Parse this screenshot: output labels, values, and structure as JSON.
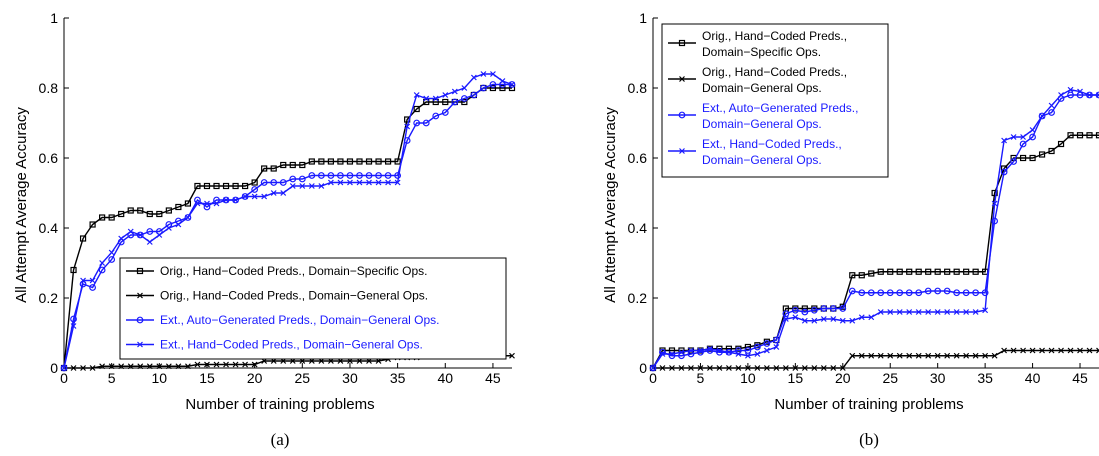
{
  "chart_data": [
    {
      "type": "line",
      "caption": "(a)",
      "xlabel": "Number of training problems",
      "ylabel": "All Attempt Average Accuracy",
      "xlim": [
        0,
        47
      ],
      "ylim": [
        0,
        1
      ],
      "xticks": [
        0,
        5,
        10,
        15,
        20,
        25,
        30,
        35,
        40,
        45
      ],
      "yticks": [
        0,
        0.2,
        0.4,
        0.6,
        0.8,
        1
      ],
      "ytick_labels": [
        "0",
        "0.2",
        "0.4",
        "0.6",
        "0.8",
        "1"
      ],
      "legend_position": "lower-right",
      "series": [
        {
          "name": "Orig., Hand−Coded Preds., Domain−Specific Ops.",
          "color": "#000000",
          "marker": "square",
          "x": [
            0,
            1,
            2,
            3,
            4,
            5,
            6,
            7,
            8,
            9,
            10,
            11,
            12,
            13,
            14,
            15,
            16,
            17,
            18,
            19,
            20,
            21,
            22,
            23,
            24,
            25,
            26,
            27,
            28,
            29,
            30,
            31,
            32,
            33,
            34,
            35,
            36,
            37,
            38,
            39,
            40,
            41,
            42,
            43,
            44,
            45,
            46,
            47
          ],
          "y": [
            0,
            0.28,
            0.37,
            0.41,
            0.43,
            0.43,
            0.44,
            0.45,
            0.45,
            0.44,
            0.44,
            0.45,
            0.46,
            0.47,
            0.52,
            0.52,
            0.52,
            0.52,
            0.52,
            0.52,
            0.53,
            0.57,
            0.57,
            0.58,
            0.58,
            0.58,
            0.59,
            0.59,
            0.59,
            0.59,
            0.59,
            0.59,
            0.59,
            0.59,
            0.59,
            0.59,
            0.71,
            0.74,
            0.76,
            0.76,
            0.76,
            0.76,
            0.76,
            0.78,
            0.8,
            0.8,
            0.8,
            0.8
          ]
        },
        {
          "name": "Orig., Hand−Coded Preds., Domain−General Ops.",
          "color": "#000000",
          "marker": "x",
          "x": [
            0,
            1,
            2,
            3,
            4,
            5,
            6,
            7,
            8,
            9,
            10,
            11,
            12,
            13,
            14,
            15,
            16,
            17,
            18,
            19,
            20,
            21,
            22,
            23,
            24,
            25,
            26,
            27,
            28,
            29,
            30,
            31,
            32,
            33,
            34,
            35,
            36,
            37,
            38,
            39,
            40,
            41,
            42,
            43,
            44,
            45,
            46,
            47
          ],
          "y": [
            0,
            0,
            0,
            0,
            0.005,
            0.005,
            0.005,
            0.005,
            0.005,
            0.005,
            0.005,
            0.005,
            0.005,
            0.005,
            0.01,
            0.01,
            0.01,
            0.01,
            0.01,
            0.01,
            0.01,
            0.02,
            0.02,
            0.02,
            0.02,
            0.02,
            0.02,
            0.02,
            0.02,
            0.02,
            0.02,
            0.02,
            0.02,
            0.02,
            0.025,
            0.03,
            0.03,
            0.03,
            0.035,
            0.035,
            0.035,
            0.035,
            0.035,
            0.035,
            0.035,
            0.035,
            0.035,
            0.035
          ]
        },
        {
          "name": "Ext., Auto−Generated Preds., Domain−General Ops.",
          "color": "#1a1aff",
          "marker": "circle",
          "x": [
            0,
            1,
            2,
            3,
            4,
            5,
            6,
            7,
            8,
            9,
            10,
            11,
            12,
            13,
            14,
            15,
            16,
            17,
            18,
            19,
            20,
            21,
            22,
            23,
            24,
            25,
            26,
            27,
            28,
            29,
            30,
            31,
            32,
            33,
            34,
            35,
            36,
            37,
            38,
            39,
            40,
            41,
            42,
            43,
            44,
            45,
            46,
            47
          ],
          "y": [
            0,
            0.14,
            0.24,
            0.23,
            0.28,
            0.31,
            0.36,
            0.38,
            0.38,
            0.39,
            0.39,
            0.41,
            0.42,
            0.43,
            0.48,
            0.46,
            0.48,
            0.48,
            0.48,
            0.49,
            0.51,
            0.53,
            0.53,
            0.53,
            0.54,
            0.54,
            0.55,
            0.55,
            0.55,
            0.55,
            0.55,
            0.55,
            0.55,
            0.55,
            0.55,
            0.55,
            0.65,
            0.7,
            0.7,
            0.72,
            0.73,
            0.76,
            0.77,
            0.78,
            0.8,
            0.81,
            0.81,
            0.81
          ]
        },
        {
          "name": "Ext., Hand−Coded Preds., Domain−General Ops.",
          "color": "#1a1aff",
          "marker": "x",
          "x": [
            0,
            1,
            2,
            3,
            4,
            5,
            6,
            7,
            8,
            9,
            10,
            11,
            12,
            13,
            14,
            15,
            16,
            17,
            18,
            19,
            20,
            21,
            22,
            23,
            24,
            25,
            26,
            27,
            28,
            29,
            30,
            31,
            32,
            33,
            34,
            35,
            36,
            37,
            38,
            39,
            40,
            41,
            42,
            43,
            44,
            45,
            46,
            47
          ],
          "y": [
            0,
            0.12,
            0.25,
            0.25,
            0.3,
            0.33,
            0.37,
            0.39,
            0.38,
            0.36,
            0.38,
            0.4,
            0.41,
            0.43,
            0.47,
            0.47,
            0.47,
            0.48,
            0.48,
            0.49,
            0.49,
            0.49,
            0.5,
            0.5,
            0.52,
            0.52,
            0.52,
            0.52,
            0.53,
            0.53,
            0.53,
            0.53,
            0.53,
            0.53,
            0.53,
            0.53,
            0.69,
            0.78,
            0.77,
            0.77,
            0.78,
            0.79,
            0.8,
            0.83,
            0.84,
            0.84,
            0.82,
            0.81
          ]
        }
      ]
    },
    {
      "type": "line",
      "caption": "(b)",
      "xlabel": "Number of training problems",
      "ylabel": "All Attempt Average Accuracy",
      "xlim": [
        0,
        47
      ],
      "ylim": [
        0,
        1
      ],
      "xticks": [
        0,
        5,
        10,
        15,
        20,
        25,
        30,
        35,
        40,
        45
      ],
      "yticks": [
        0,
        0.2,
        0.4,
        0.6,
        0.8,
        1
      ],
      "ytick_labels": [
        "0",
        "0.2",
        "0.4",
        "0.6",
        "0.8",
        "1"
      ],
      "legend_position": "top-left",
      "series": [
        {
          "name": "Orig., Hand−Coded Preds., Domain−Specific Ops.",
          "color": "#000000",
          "marker": "square",
          "x": [
            0,
            1,
            2,
            3,
            4,
            5,
            6,
            7,
            8,
            9,
            10,
            11,
            12,
            13,
            14,
            15,
            16,
            17,
            18,
            19,
            20,
            21,
            22,
            23,
            24,
            25,
            26,
            27,
            28,
            29,
            30,
            31,
            32,
            33,
            34,
            35,
            36,
            37,
            38,
            39,
            40,
            41,
            42,
            43,
            44,
            45,
            46,
            47
          ],
          "y": [
            0,
            0.05,
            0.05,
            0.05,
            0.05,
            0.05,
            0.055,
            0.055,
            0.055,
            0.055,
            0.06,
            0.065,
            0.075,
            0.08,
            0.17,
            0.17,
            0.17,
            0.17,
            0.17,
            0.17,
            0.175,
            0.265,
            0.265,
            0.27,
            0.275,
            0.275,
            0.275,
            0.275,
            0.275,
            0.275,
            0.275,
            0.275,
            0.275,
            0.275,
            0.275,
            0.275,
            0.5,
            0.57,
            0.6,
            0.6,
            0.6,
            0.61,
            0.62,
            0.64,
            0.665,
            0.665,
            0.665,
            0.665
          ]
        },
        {
          "name": "Orig., Hand−Coded Preds., Domain−General Ops.",
          "color": "#000000",
          "marker": "x",
          "x": [
            0,
            1,
            2,
            3,
            4,
            5,
            6,
            7,
            8,
            9,
            10,
            11,
            12,
            13,
            14,
            15,
            16,
            17,
            18,
            19,
            20,
            21,
            22,
            23,
            24,
            25,
            26,
            27,
            28,
            29,
            30,
            31,
            32,
            33,
            34,
            35,
            36,
            37,
            38,
            39,
            40,
            41,
            42,
            43,
            44,
            45,
            46,
            47
          ],
          "y": [
            0,
            0,
            0,
            0,
            0,
            0,
            0,
            0,
            0,
            0,
            0,
            0,
            0,
            0,
            0,
            0,
            0,
            0,
            0,
            0,
            0,
            0.035,
            0.035,
            0.035,
            0.035,
            0.035,
            0.035,
            0.035,
            0.035,
            0.035,
            0.035,
            0.035,
            0.035,
            0.035,
            0.035,
            0.035,
            0.035,
            0.05,
            0.05,
            0.05,
            0.05,
            0.05,
            0.05,
            0.05,
            0.05,
            0.05,
            0.05,
            0.05
          ]
        },
        {
          "name": "Ext., Auto−Generated Preds., Domain−General Ops.",
          "color": "#1a1aff",
          "marker": "circle",
          "x": [
            0,
            1,
            2,
            3,
            4,
            5,
            6,
            7,
            8,
            9,
            10,
            11,
            12,
            13,
            14,
            15,
            16,
            17,
            18,
            19,
            20,
            21,
            22,
            23,
            24,
            25,
            26,
            27,
            28,
            29,
            30,
            31,
            32,
            33,
            34,
            35,
            36,
            37,
            38,
            39,
            40,
            41,
            42,
            43,
            44,
            45,
            46,
            47
          ],
          "y": [
            0,
            0.045,
            0.035,
            0.035,
            0.04,
            0.045,
            0.05,
            0.045,
            0.045,
            0.05,
            0.05,
            0.06,
            0.07,
            0.08,
            0.155,
            0.165,
            0.16,
            0.165,
            0.17,
            0.17,
            0.17,
            0.22,
            0.215,
            0.215,
            0.215,
            0.215,
            0.215,
            0.215,
            0.215,
            0.22,
            0.22,
            0.22,
            0.215,
            0.215,
            0.215,
            0.215,
            0.42,
            0.56,
            0.59,
            0.64,
            0.66,
            0.72,
            0.73,
            0.77,
            0.78,
            0.78,
            0.78,
            0.78
          ]
        },
        {
          "name": "Ext., Hand−Coded Preds., Domain−General Ops.",
          "color": "#1a1aff",
          "marker": "x",
          "x": [
            0,
            1,
            2,
            3,
            4,
            5,
            6,
            7,
            8,
            9,
            10,
            11,
            12,
            13,
            14,
            15,
            16,
            17,
            18,
            19,
            20,
            21,
            22,
            23,
            24,
            25,
            26,
            27,
            28,
            29,
            30,
            31,
            32,
            33,
            34,
            35,
            36,
            37,
            38,
            39,
            40,
            41,
            42,
            43,
            44,
            45,
            46,
            47
          ],
          "y": [
            0,
            0.04,
            0.04,
            0.045,
            0.05,
            0.05,
            0.055,
            0.05,
            0.045,
            0.04,
            0.035,
            0.04,
            0.05,
            0.06,
            0.14,
            0.145,
            0.135,
            0.135,
            0.14,
            0.14,
            0.135,
            0.135,
            0.145,
            0.145,
            0.16,
            0.16,
            0.16,
            0.16,
            0.16,
            0.16,
            0.16,
            0.16,
            0.16,
            0.16,
            0.16,
            0.165,
            0.47,
            0.65,
            0.66,
            0.66,
            0.68,
            0.72,
            0.75,
            0.78,
            0.795,
            0.79,
            0.78,
            0.78
          ]
        }
      ]
    }
  ]
}
